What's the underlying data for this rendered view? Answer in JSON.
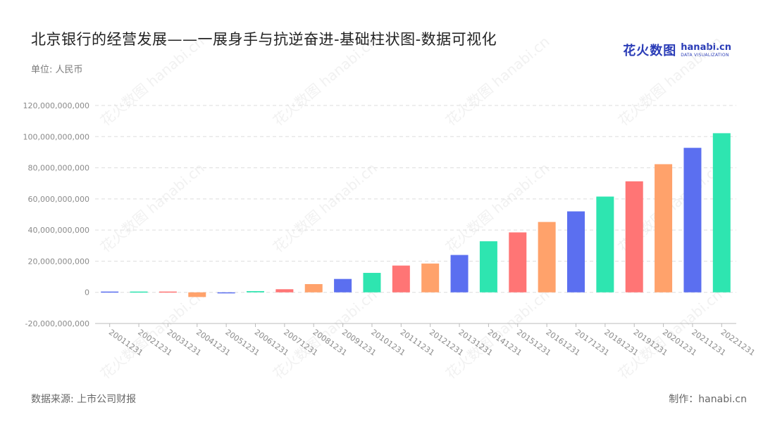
{
  "header": {
    "title": "北京银行的经营发展——一展身手与抗逆奋进-基础柱状图-数据可视化",
    "unit": "单位: 人民币"
  },
  "logo": {
    "cn": "花火数图",
    "en": "hanabi.cn",
    "sub": "DATA VISUALIZATION"
  },
  "footer": {
    "source": "数据来源: 上市公司财报",
    "maker": "制作：hanabi.cn"
  },
  "watermark": "花火数图 hanabi.cn",
  "colors": {
    "blue": "#5b6ff0",
    "green": "#2ee5b0",
    "red": "#ff7575",
    "orange": "#ffa26b",
    "grid": "#dddddd",
    "axis": "#bbbbbb"
  },
  "chart_data": {
    "type": "bar",
    "title": "北京银行的经营发展——一展身手与抗逆奋进-基础柱状图-数据可视化",
    "ylabel": "",
    "xlabel": "",
    "ylim": [
      -20000000000,
      120000000000
    ],
    "yticks": [
      120000000000,
      100000000000,
      80000000000,
      60000000000,
      40000000000,
      20000000000,
      0,
      -20000000000
    ],
    "ytick_labels": [
      "120,000,000,000",
      "100,000,000,000",
      "80,000,000,000",
      "60,000,000,000",
      "40,000,000,000",
      "20,000,000,000",
      "0",
      "-20,000,000,000"
    ],
    "grid": true,
    "legend": "none",
    "categories": [
      "20011231",
      "20021231",
      "20031231",
      "20041231",
      "20051231",
      "20061231",
      "20071231",
      "20081231",
      "20091231",
      "20101231",
      "20111231",
      "20121231",
      "20131231",
      "20141231",
      "20151231",
      "20161231",
      "20171231",
      "20181231",
      "20191231",
      "20201231",
      "20211231",
      "20221231"
    ],
    "values": [
      500000000,
      500000000,
      500000000,
      -3000000000,
      -500000000,
      800000000,
      2000000000,
      5300000000,
      8600000000,
      12500000000,
      17200000000,
      18500000000,
      24000000000,
      32800000000,
      38500000000,
      45200000000,
      52000000000,
      61500000000,
      71300000000,
      82300000000,
      92800000000,
      102200000000
    ],
    "bar_colors": [
      "blue",
      "green",
      "red",
      "orange",
      "blue",
      "green",
      "red",
      "orange",
      "blue",
      "green",
      "red",
      "orange",
      "blue",
      "green",
      "red",
      "orange",
      "blue",
      "green",
      "red",
      "orange",
      "blue",
      "green"
    ]
  }
}
